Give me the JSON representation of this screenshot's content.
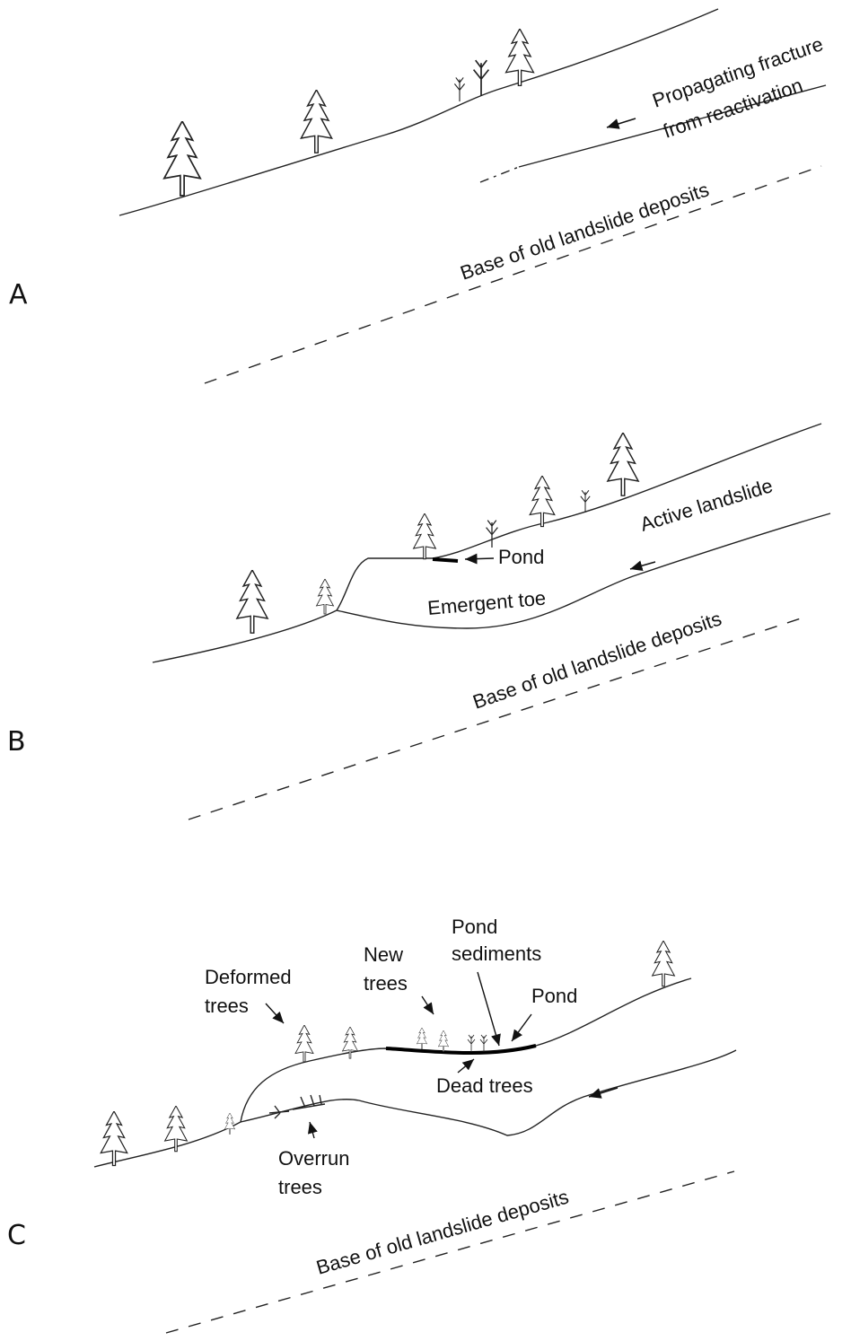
{
  "panels": [
    {
      "label": "A",
      "fracture": [
        "Propagating fracture",
        "from reactivation"
      ],
      "base": "Base of old landslide deposits"
    },
    {
      "label": "B",
      "active": "Active landslide",
      "pond": "Pond",
      "toe": "Emergent toe",
      "base": "Base of old landslide deposits"
    },
    {
      "label": "C",
      "deformed": [
        "Deformed",
        "trees"
      ],
      "new_trees": [
        "New",
        "trees"
      ],
      "pond_sediments": [
        "Pond",
        "sediments"
      ],
      "pond": "Pond",
      "dead_trees": "Dead trees",
      "overrun": [
        "Overrun",
        "trees"
      ],
      "base": "Base of old landslide deposits"
    }
  ]
}
